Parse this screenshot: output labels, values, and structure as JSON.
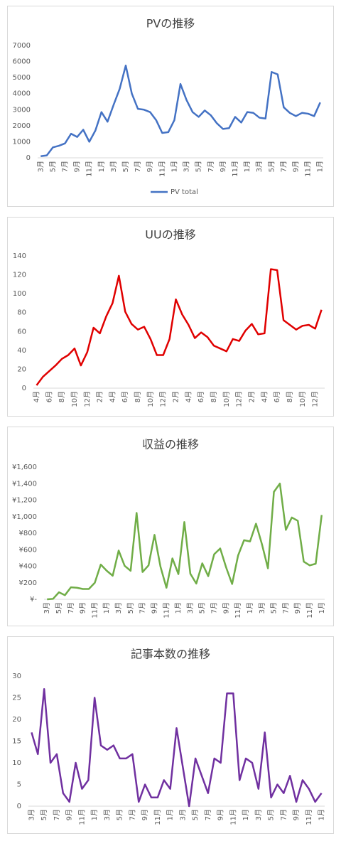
{
  "chart_data": [
    {
      "type": "line",
      "title": "PVの推移",
      "categories": [
        "3月",
        null,
        "5月",
        null,
        "7月",
        null,
        "9月",
        null,
        "11月",
        null,
        "1月",
        null,
        "3月",
        null,
        "5月",
        null,
        "7月",
        null,
        "9月",
        null,
        "11月",
        null,
        "1月",
        null,
        "3月",
        null,
        "5月",
        null,
        "7月",
        null,
        "9月",
        null,
        "11月",
        null,
        "1月",
        null,
        "3月",
        null,
        "5月",
        null,
        "7月",
        null,
        "9月",
        null,
        "11月",
        null,
        "1月"
      ],
      "series": [
        {
          "name": "PV total",
          "color": "#4472c4",
          "values": [
            100,
            150,
            650,
            750,
            900,
            1500,
            1300,
            1750,
            1000,
            1700,
            2850,
            2250,
            3300,
            4300,
            5750,
            4000,
            3050,
            3000,
            2850,
            2350,
            1550,
            1600,
            2350,
            4600,
            3600,
            2850,
            2550,
            2950,
            2650,
            2150,
            1800,
            1850,
            2550,
            2200,
            2850,
            2800,
            2500,
            2450,
            5350,
            5200,
            3150,
            2800,
            2600,
            2800,
            2750,
            2600,
            3450
          ]
        }
      ],
      "ylim": [
        0,
        7000
      ],
      "yticks": [
        0,
        1000,
        2000,
        3000,
        4000,
        5000,
        6000,
        7000
      ],
      "legend": "bottom"
    },
    {
      "type": "line",
      "title": "UUの推移",
      "categories": [
        "4月",
        null,
        "6月",
        null,
        "8月",
        null,
        "10月",
        null,
        "12月",
        null,
        "2月",
        null,
        "4月",
        null,
        "6月",
        null,
        "8月",
        null,
        "10月",
        null,
        "12月",
        null,
        "2月",
        null,
        "4月",
        null,
        "6月",
        null,
        "8月",
        null,
        "10月",
        null,
        "12月",
        null,
        "2月",
        null,
        "4月",
        null,
        "6月",
        null,
        "8月",
        null,
        "10月",
        null,
        "12月",
        null
      ],
      "color": "#e00000",
      "values": [
        3,
        12,
        18,
        24,
        31,
        35,
        42,
        24,
        38,
        64,
        58,
        76,
        90,
        119,
        81,
        68,
        62,
        65,
        52,
        35,
        35,
        52,
        94,
        78,
        67,
        53,
        59,
        54,
        45,
        42,
        39,
        52,
        50,
        61,
        68,
        57,
        58,
        126,
        125,
        72,
        67,
        62,
        66,
        67,
        63,
        83
      ],
      "ylim": [
        0,
        140
      ],
      "yticks": [
        0,
        20,
        40,
        60,
        80,
        100,
        120,
        140
      ]
    },
    {
      "type": "line",
      "title": "収益の推移",
      "categories": [
        "3月",
        null,
        "5月",
        null,
        "7月",
        null,
        "9月",
        null,
        "11月",
        null,
        "1月",
        null,
        "3月",
        null,
        "5月",
        null,
        "7月",
        null,
        "9月",
        null,
        "11月",
        null,
        "1月",
        null,
        "3月",
        null,
        "5月",
        null,
        "7月",
        null,
        "9月",
        null,
        "11月",
        null,
        "1月",
        null,
        "3月",
        null,
        "5月",
        null,
        "7月",
        null,
        "9月",
        null,
        "11月",
        null,
        "1月"
      ],
      "color": "#70ad47",
      "values": [
        0,
        5,
        85,
        50,
        145,
        140,
        125,
        125,
        200,
        420,
        345,
        285,
        590,
        405,
        345,
        1045,
        330,
        410,
        780,
        395,
        140,
        495,
        305,
        935,
        310,
        190,
        435,
        280,
        545,
        615,
        385,
        185,
        530,
        715,
        700,
        915,
        665,
        375,
        1300,
        1400,
        840,
        990,
        950,
        455,
        410,
        430,
        1020
      ],
      "ylim": [
        0,
        1600
      ],
      "yticks": [
        {
          "value": 0,
          "label": "¥-"
        },
        {
          "value": 200,
          "label": "¥200"
        },
        {
          "value": 400,
          "label": "¥400"
        },
        {
          "value": 600,
          "label": "¥600"
        },
        {
          "value": 800,
          "label": "¥800"
        },
        {
          "value": 1000,
          "label": "¥1,000"
        },
        {
          "value": 1200,
          "label": "¥1,200"
        },
        {
          "value": 1400,
          "label": "¥1,400"
        },
        {
          "value": 1600,
          "label": "¥1,600"
        }
      ]
    },
    {
      "type": "line",
      "title": "記事本数の推移",
      "categories": [
        "3月",
        null,
        "5月",
        null,
        "7月",
        null,
        "9月",
        null,
        "11月",
        null,
        "1月",
        null,
        "3月",
        null,
        "5月",
        null,
        "7月",
        null,
        "9月",
        null,
        "11月",
        null,
        "1月",
        null,
        "3月",
        null,
        "5月",
        null,
        "7月",
        null,
        "9月",
        null,
        "11月",
        null,
        "1月",
        null,
        "3月",
        null,
        "5月",
        null,
        "7月",
        null,
        "9月",
        null,
        "11月",
        null,
        "1月"
      ],
      "color": "#7030a0",
      "values": [
        17,
        12,
        27,
        10,
        12,
        3,
        1,
        10,
        4,
        6,
        25,
        14,
        13,
        14,
        11,
        11,
        12,
        1,
        5,
        2,
        2,
        6,
        4,
        18,
        9,
        0,
        11,
        7,
        3,
        11,
        10,
        26,
        26,
        6,
        11,
        10,
        4,
        17,
        2,
        5,
        3,
        7,
        1,
        6,
        4,
        1,
        3
      ],
      "ylim": [
        0,
        30
      ],
      "yticks": [
        0,
        5,
        10,
        15,
        20,
        25,
        30
      ]
    }
  ]
}
